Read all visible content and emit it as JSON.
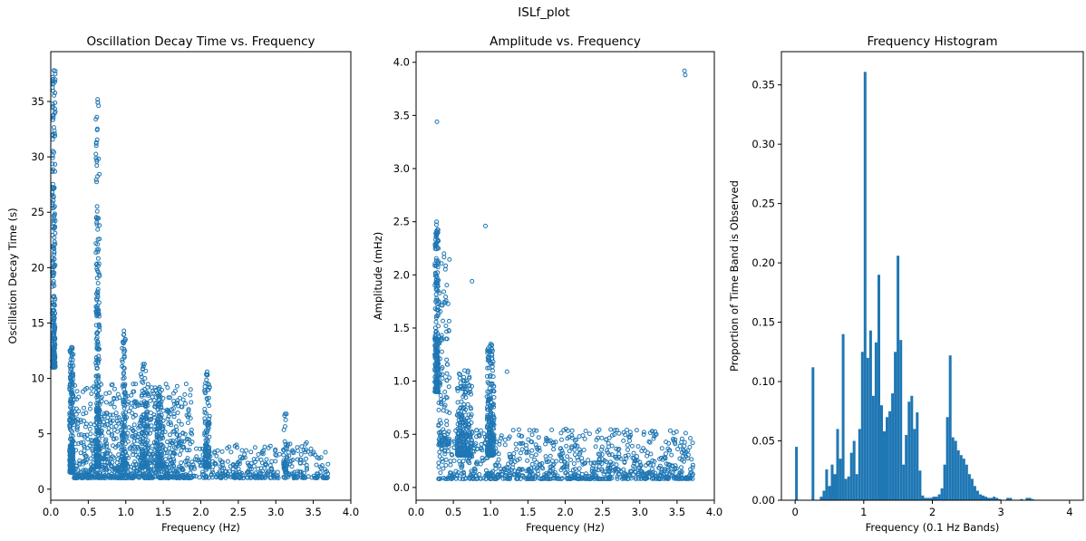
{
  "figure_title": "ISLf_plot",
  "series_color": "#1f77b4",
  "chart_data": [
    {
      "type": "scatter",
      "title": "Oscillation Decay Time vs. Frequency",
      "xlabel": "Frequency (Hz)",
      "ylabel": "Oscillation Decay Time (s)",
      "xlim": [
        0.0,
        4.0
      ],
      "ylim": [
        -1.0,
        39.5
      ],
      "xticks": [
        0.0,
        0.5,
        1.0,
        1.5,
        2.0,
        2.5,
        3.0,
        3.5,
        4.0
      ],
      "xtick_labels": [
        "0.0",
        "0.5",
        "1.0",
        "1.5",
        "2.0",
        "2.5",
        "3.0",
        "3.5",
        "4.0"
      ],
      "yticks": [
        0,
        5,
        10,
        15,
        20,
        25,
        30,
        35
      ],
      "ytick_labels": [
        "0",
        "5",
        "10",
        "15",
        "20",
        "25",
        "30",
        "35"
      ],
      "marker": "open-circle",
      "grid": false,
      "point_clusters": [
        {
          "x_range": [
            0.02,
            0.06
          ],
          "y_range": [
            11.0,
            37.8
          ],
          "density": "high"
        },
        {
          "x_range": [
            0.25,
            0.3
          ],
          "y_range": [
            1.5,
            12.8
          ],
          "density": "high"
        },
        {
          "x_range": [
            0.6,
            0.65
          ],
          "y_range": [
            2.0,
            35.2
          ],
          "density": "high"
        },
        {
          "x_range": [
            0.3,
            1.9
          ],
          "y_range": [
            1.0,
            9.5
          ],
          "density": "very high"
        },
        {
          "x_range": [
            0.95,
            1.0
          ],
          "y_range": [
            2.0,
            14.3
          ],
          "density": "medium"
        },
        {
          "x_range": [
            1.2,
            1.3
          ],
          "y_range": [
            2.0,
            11.3
          ],
          "density": "medium"
        },
        {
          "x_range": [
            1.4,
            1.5
          ],
          "y_range": [
            2.0,
            9.2
          ],
          "density": "medium"
        },
        {
          "x_range": [
            2.05,
            2.12
          ],
          "y_range": [
            2.0,
            10.6
          ],
          "density": "medium"
        },
        {
          "x_range": [
            1.9,
            3.05
          ],
          "y_range": [
            1.0,
            4.0
          ],
          "density": "high"
        },
        {
          "x_range": [
            3.1,
            3.15
          ],
          "y_range": [
            1.5,
            6.8
          ],
          "density": "low"
        },
        {
          "x_range": [
            3.1,
            3.72
          ],
          "y_range": [
            1.0,
            4.2
          ],
          "density": "medium"
        }
      ]
    },
    {
      "type": "scatter",
      "title": "Amplitude vs. Frequency",
      "xlabel": "Frequency (Hz)",
      "ylabel": "Amplitude (mHz)",
      "xlim": [
        0.0,
        4.0
      ],
      "ylim": [
        -0.12,
        4.1
      ],
      "xticks": [
        0.0,
        0.5,
        1.0,
        1.5,
        2.0,
        2.5,
        3.0,
        3.5,
        4.0
      ],
      "xtick_labels": [
        "0.0",
        "0.5",
        "1.0",
        "1.5",
        "2.0",
        "2.5",
        "3.0",
        "3.5",
        "4.0"
      ],
      "yticks": [
        0.0,
        0.5,
        1.0,
        1.5,
        2.0,
        2.5,
        3.0,
        3.5,
        4.0
      ],
      "ytick_labels": [
        "0.0",
        "0.5",
        "1.0",
        "1.5",
        "2.0",
        "2.5",
        "3.0",
        "3.5",
        "4.0"
      ],
      "marker": "open-circle",
      "grid": false,
      "point_clusters": [
        {
          "x_range": [
            0.25,
            0.3
          ],
          "y_range": [
            0.9,
            2.5
          ],
          "density": "high"
        },
        {
          "x_range": [
            0.3,
            0.45
          ],
          "y_range": [
            0.4,
            2.2
          ],
          "density": "medium"
        },
        {
          "x_range": [
            0.3,
            3.72
          ],
          "y_range": [
            0.08,
            0.55
          ],
          "density": "very high"
        },
        {
          "x_range": [
            0.55,
            0.75
          ],
          "y_range": [
            0.3,
            1.1
          ],
          "density": "high"
        },
        {
          "x_range": [
            0.95,
            1.05
          ],
          "y_range": [
            0.3,
            1.35
          ],
          "density": "high"
        }
      ],
      "outliers": [
        {
          "x": 0.28,
          "y": 3.44
        },
        {
          "x": 0.93,
          "y": 2.46
        },
        {
          "x": 0.75,
          "y": 1.94
        },
        {
          "x": 1.22,
          "y": 1.09
        },
        {
          "x": 3.6,
          "y": 3.92
        },
        {
          "x": 3.61,
          "y": 3.88
        }
      ]
    },
    {
      "type": "bar",
      "title": "Frequency Histogram",
      "xlabel": "Frequency (0.1 Hz Bands)",
      "ylabel": "Proportion of Time Band is Observed",
      "xlim": [
        -0.2,
        4.2
      ],
      "ylim": [
        0.0,
        0.378
      ],
      "xticks": [
        0,
        1,
        2,
        3,
        4
      ],
      "xtick_labels": [
        "0",
        "1",
        "2",
        "3",
        "4"
      ],
      "yticks": [
        0.0,
        0.05,
        0.1,
        0.15,
        0.2,
        0.25,
        0.3,
        0.35
      ],
      "ytick_labels": [
        "0.00",
        "0.05",
        "0.10",
        "0.15",
        "0.20",
        "0.25",
        "0.30",
        "0.35"
      ],
      "bin_width": 0.04,
      "grid": false,
      "bars": [
        {
          "x": 0.02,
          "value": 0.045
        },
        {
          "x": 0.26,
          "value": 0.112
        },
        {
          "x": 0.38,
          "value": 0.003
        },
        {
          "x": 0.42,
          "value": 0.008
        },
        {
          "x": 0.46,
          "value": 0.026
        },
        {
          "x": 0.5,
          "value": 0.012
        },
        {
          "x": 0.54,
          "value": 0.03
        },
        {
          "x": 0.58,
          "value": 0.022
        },
        {
          "x": 0.62,
          "value": 0.06
        },
        {
          "x": 0.66,
          "value": 0.035
        },
        {
          "x": 0.7,
          "value": 0.14
        },
        {
          "x": 0.74,
          "value": 0.018
        },
        {
          "x": 0.78,
          "value": 0.02
        },
        {
          "x": 0.82,
          "value": 0.04
        },
        {
          "x": 0.86,
          "value": 0.05
        },
        {
          "x": 0.9,
          "value": 0.022
        },
        {
          "x": 0.94,
          "value": 0.06
        },
        {
          "x": 0.98,
          "value": 0.125
        },
        {
          "x": 1.02,
          "value": 0.361
        },
        {
          "x": 1.06,
          "value": 0.12
        },
        {
          "x": 1.1,
          "value": 0.143
        },
        {
          "x": 1.14,
          "value": 0.088
        },
        {
          "x": 1.18,
          "value": 0.133
        },
        {
          "x": 1.22,
          "value": 0.19
        },
        {
          "x": 1.26,
          "value": 0.08
        },
        {
          "x": 1.3,
          "value": 0.058
        },
        {
          "x": 1.34,
          "value": 0.07
        },
        {
          "x": 1.38,
          "value": 0.075
        },
        {
          "x": 1.42,
          "value": 0.09
        },
        {
          "x": 1.46,
          "value": 0.125
        },
        {
          "x": 1.5,
          "value": 0.206
        },
        {
          "x": 1.54,
          "value": 0.135
        },
        {
          "x": 1.58,
          "value": 0.03
        },
        {
          "x": 1.62,
          "value": 0.055
        },
        {
          "x": 1.66,
          "value": 0.083
        },
        {
          "x": 1.7,
          "value": 0.088
        },
        {
          "x": 1.74,
          "value": 0.06
        },
        {
          "x": 1.78,
          "value": 0.074
        },
        {
          "x": 1.82,
          "value": 0.025
        },
        {
          "x": 1.86,
          "value": 0.004
        },
        {
          "x": 1.9,
          "value": 0.002
        },
        {
          "x": 1.94,
          "value": 0.002
        },
        {
          "x": 1.98,
          "value": 0.002
        },
        {
          "x": 2.02,
          "value": 0.003
        },
        {
          "x": 2.06,
          "value": 0.003
        },
        {
          "x": 2.1,
          "value": 0.005
        },
        {
          "x": 2.14,
          "value": 0.01
        },
        {
          "x": 2.18,
          "value": 0.03
        },
        {
          "x": 2.22,
          "value": 0.07
        },
        {
          "x": 2.26,
          "value": 0.122
        },
        {
          "x": 2.3,
          "value": 0.053
        },
        {
          "x": 2.34,
          "value": 0.05
        },
        {
          "x": 2.38,
          "value": 0.042
        },
        {
          "x": 2.42,
          "value": 0.038
        },
        {
          "x": 2.46,
          "value": 0.035
        },
        {
          "x": 2.5,
          "value": 0.03
        },
        {
          "x": 2.54,
          "value": 0.022
        },
        {
          "x": 2.58,
          "value": 0.018
        },
        {
          "x": 2.62,
          "value": 0.012
        },
        {
          "x": 2.66,
          "value": 0.008
        },
        {
          "x": 2.7,
          "value": 0.005
        },
        {
          "x": 2.74,
          "value": 0.004
        },
        {
          "x": 2.78,
          "value": 0.003
        },
        {
          "x": 2.82,
          "value": 0.002
        },
        {
          "x": 2.86,
          "value": 0.002
        },
        {
          "x": 2.9,
          "value": 0.003
        },
        {
          "x": 2.94,
          "value": 0.002
        },
        {
          "x": 2.98,
          "value": 0.001
        },
        {
          "x": 3.1,
          "value": 0.002
        },
        {
          "x": 3.14,
          "value": 0.002
        },
        {
          "x": 3.3,
          "value": 0.001
        },
        {
          "x": 3.38,
          "value": 0.002
        },
        {
          "x": 3.42,
          "value": 0.002
        },
        {
          "x": 3.46,
          "value": 0.001
        }
      ]
    }
  ]
}
